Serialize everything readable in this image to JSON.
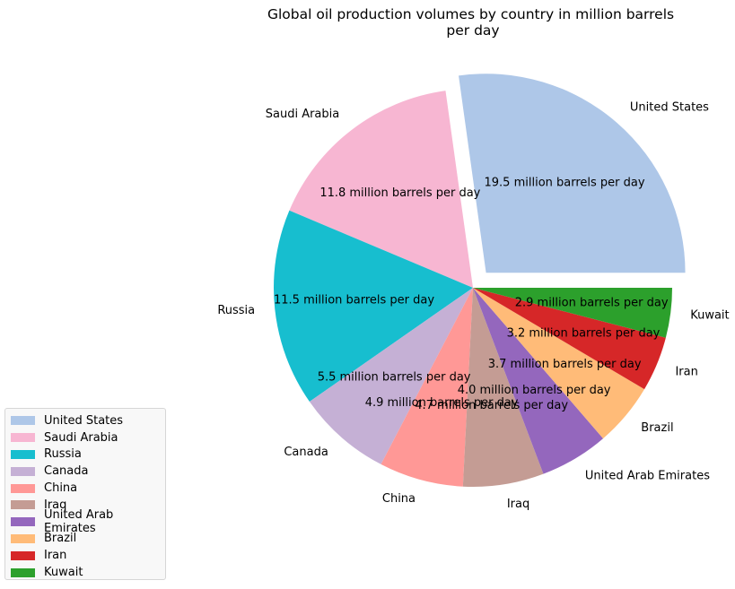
{
  "chart_data": {
    "type": "pie",
    "title": "Global oil production volumes by country in million barrels per day",
    "title_lines": [
      "Global oil production volumes by country in million barrels",
      "per day"
    ],
    "unit": "million barrels per day",
    "legend_position": "bottom-left",
    "exploded": "United States",
    "slices": [
      {
        "label": "United States",
        "value": 19.5,
        "value_label": "19.5 million barrels per day",
        "color": "#aec7e8"
      },
      {
        "label": "Saudi Arabia",
        "value": 11.8,
        "value_label": "11.8 million barrels per day",
        "color": "#f7b6d2"
      },
      {
        "label": "Russia",
        "value": 11.5,
        "value_label": "11.5 million barrels per day",
        "color": "#17becf"
      },
      {
        "label": "Canada",
        "value": 5.5,
        "value_label": "5.5 million barrels per day",
        "color": "#c5b0d5"
      },
      {
        "label": "China",
        "value": 4.9,
        "value_label": "4.9 million barrels per day",
        "color": "#ff9896"
      },
      {
        "label": "Iraq",
        "value": 4.7,
        "value_label": "4.7 million barrels per day",
        "color": "#c49c94"
      },
      {
        "label": "United Arab Emirates",
        "value": 4.0,
        "value_label": "4.0 million barrels per day",
        "color": "#9467bd"
      },
      {
        "label": "Brazil",
        "value": 3.7,
        "value_label": "3.7 million barrels per day",
        "color": "#ffbb78"
      },
      {
        "label": "Iran",
        "value": 3.2,
        "value_label": "3.2 million barrels per day",
        "color": "#d62728"
      },
      {
        "label": "Kuwait",
        "value": 2.9,
        "value_label": "2.9 million barrels per day",
        "color": "#2ca02c"
      }
    ]
  }
}
